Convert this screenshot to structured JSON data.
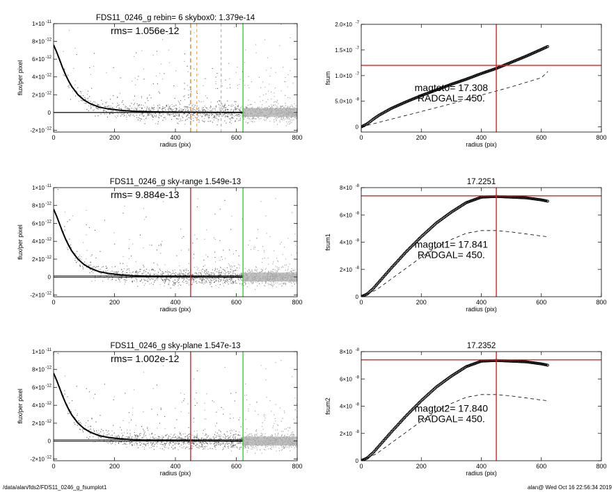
{
  "footer": {
    "path": "/data/alan/fds2/FDS11_0246_g_fsumplot1",
    "stamp": "alan@  Wed Oct 16 22:56:34 2019"
  },
  "chart_data": [
    {
      "id": "profile-1",
      "type": "scatter",
      "title": "FDS11_0246_g rebin= 6    skybox0:  1.379e-14",
      "annotations": [
        "rms= 1.056e-12"
      ],
      "xlabel": "radius (pix)",
      "ylabel": "flux/per pixel",
      "xlim": [
        0,
        800
      ],
      "ylim": [
        -2.2e-12,
        1e-11
      ],
      "xticks": [
        {
          "v": 0,
          "label": "0"
        },
        {
          "v": 200,
          "label": "200"
        },
        {
          "v": 400,
          "label": "400"
        },
        {
          "v": 600,
          "label": "600"
        },
        {
          "v": 800,
          "label": "800"
        }
      ],
      "yticks": [
        {
          "v": 1e-11,
          "label": "1×10",
          "exp": "-11"
        },
        {
          "v": 8e-12,
          "label": "8×10",
          "exp": "-12"
        },
        {
          "v": 6e-12,
          "label": "6×10",
          "exp": "-12"
        },
        {
          "v": 4e-12,
          "label": "4×10",
          "exp": "-12"
        },
        {
          "v": 2e-12,
          "label": "2×10",
          "exp": "-12"
        },
        {
          "v": 0,
          "label": "0",
          "exp": ""
        },
        {
          "v": -2e-12,
          "label": "-2×10",
          "exp": "-12"
        }
      ],
      "profile": {
        "x": [
          0,
          10,
          20,
          30,
          40,
          50,
          60,
          80,
          100,
          120,
          150,
          180,
          220,
          260,
          300,
          350,
          400,
          450,
          500,
          550,
          620
        ],
        "y": [
          7.6e-12,
          6.8e-12,
          5.9e-12,
          5e-12,
          4.2e-12,
          3.5e-12,
          2.9e-12,
          2e-12,
          1.4e-12,
          1e-12,
          6e-13,
          4e-13,
          2.5e-13,
          1.5e-13,
          1e-13,
          6e-14,
          4e-14,
          3e-14,
          2e-14,
          1.5e-14,
          1e-14
        ]
      },
      "zero_line": true,
      "vlines": [
        {
          "x": 450,
          "color": "#e8862a",
          "dash": "6,4"
        },
        {
          "x": 470,
          "color": "#f0b070",
          "dash": "4,4"
        },
        {
          "x": 550,
          "color": "#bbbbbb",
          "dash": "4,4"
        },
        {
          "x": 622,
          "color": "#22dd22",
          "dash": ""
        }
      ],
      "hlines": [],
      "noise_amp": 1.1e-12
    },
    {
      "id": "fsum-0",
      "type": "line",
      "title": "",
      "annotations": [
        "magtot0=  17.308",
        "RADGAL=    450."
      ],
      "xlabel": "radius (pix)",
      "ylabel": "fsum",
      "xlim": [
        0,
        800
      ],
      "ylim": [
        -1e-08,
        2e-07
      ],
      "xticks": [
        {
          "v": 0,
          "label": "0"
        },
        {
          "v": 200,
          "label": "200"
        },
        {
          "v": 400,
          "label": "400"
        },
        {
          "v": 600,
          "label": "600"
        },
        {
          "v": 800,
          "label": "800"
        }
      ],
      "yticks": [
        {
          "v": 2e-07,
          "label": "2.0×10",
          "exp": "-7"
        },
        {
          "v": 1.5e-07,
          "label": "1.5×10",
          "exp": "-7"
        },
        {
          "v": 1e-07,
          "label": "1.0×10",
          "exp": "-7"
        },
        {
          "v": 5e-08,
          "label": "5.0×10",
          "exp": "-8"
        },
        {
          "v": 0,
          "label": "0",
          "exp": ""
        }
      ],
      "curve": {
        "x": [
          0,
          20,
          40,
          60,
          100,
          150,
          200,
          250,
          300,
          350,
          400,
          450,
          500,
          550,
          600,
          622
        ],
        "y": [
          0,
          6e-09,
          1.5e-08,
          2.3e-08,
          3.6e-08,
          4.9e-08,
          6.1e-08,
          7.2e-08,
          8.3e-08,
          9.3e-08,
          1.04e-07,
          1.14e-07,
          1.26e-07,
          1.38e-07,
          1.51e-07,
          1.57e-07
        ]
      },
      "dashed": {
        "x": [
          0,
          100,
          200,
          300,
          400,
          500,
          600,
          622
        ],
        "y": [
          0,
          1.5e-08,
          3e-08,
          4.5e-08,
          6.2e-08,
          7.8e-08,
          9.6e-08,
          1.08e-07
        ]
      },
      "vlines": [
        {
          "x": 450,
          "color": "#e02020",
          "dash": ""
        }
      ],
      "hlines": [
        {
          "y": 1.2e-07,
          "color": "#e02020"
        }
      ]
    },
    {
      "id": "profile-2",
      "type": "scatter",
      "title": "FDS11_0246_g sky-range  1.549e-13",
      "annotations": [
        "rms= 9.884e-13"
      ],
      "xlabel": "radius (pix)",
      "ylabel": "flux/per pixel",
      "xlim": [
        0,
        800
      ],
      "ylim": [
        -2.2e-12,
        1e-11
      ],
      "xticks": [
        {
          "v": 0,
          "label": "0"
        },
        {
          "v": 200,
          "label": "200"
        },
        {
          "v": 400,
          "label": "400"
        },
        {
          "v": 600,
          "label": "600"
        },
        {
          "v": 800,
          "label": "800"
        }
      ],
      "yticks": [
        {
          "v": 1e-11,
          "label": "1×10",
          "exp": "-11"
        },
        {
          "v": 8e-12,
          "label": "8×10",
          "exp": "-12"
        },
        {
          "v": 6e-12,
          "label": "6×10",
          "exp": "-12"
        },
        {
          "v": 4e-12,
          "label": "4×10",
          "exp": "-12"
        },
        {
          "v": 2e-12,
          "label": "2×10",
          "exp": "-12"
        },
        {
          "v": 0,
          "label": "0",
          "exp": ""
        },
        {
          "v": -2e-12,
          "label": "-2×10",
          "exp": "-12"
        }
      ],
      "profile": {
        "x": [
          0,
          10,
          20,
          30,
          40,
          50,
          60,
          80,
          100,
          120,
          150,
          180,
          220,
          260,
          300,
          350,
          400,
          450,
          500,
          550,
          620
        ],
        "y": [
          7.6e-12,
          6.8e-12,
          5.9e-12,
          5e-12,
          4.2e-12,
          3.5e-12,
          2.9e-12,
          2e-12,
          1.4e-12,
          1e-12,
          6e-13,
          4e-13,
          2.5e-13,
          1.5e-13,
          1e-13,
          6e-14,
          4e-14,
          3e-14,
          2e-14,
          1.5e-14,
          1e-14
        ]
      },
      "zero_line": true,
      "vlines": [
        {
          "x": 450,
          "color": "#e02020",
          "dash": ""
        },
        {
          "x": 622,
          "color": "#22dd22",
          "dash": ""
        }
      ],
      "hlines": [],
      "noise_amp": 1e-12
    },
    {
      "id": "fsum-1",
      "type": "line",
      "title": "17.2251",
      "annotations": [
        "magtot1=  17.841",
        "RADGAL=    450."
      ],
      "xlabel": "radius (pix)",
      "ylabel": "fsum1",
      "xlim": [
        0,
        800
      ],
      "ylim": [
        0,
        8e-08
      ],
      "xticks": [
        {
          "v": 0,
          "label": "0"
        },
        {
          "v": 200,
          "label": "200"
        },
        {
          "v": 400,
          "label": "400"
        },
        {
          "v": 600,
          "label": "600"
        },
        {
          "v": 800,
          "label": "800"
        }
      ],
      "yticks": [
        {
          "v": 8e-08,
          "label": "8×10",
          "exp": "-8"
        },
        {
          "v": 6e-08,
          "label": "6×10",
          "exp": "-8"
        },
        {
          "v": 4e-08,
          "label": "4×10",
          "exp": "-8"
        },
        {
          "v": 2e-08,
          "label": "2×10",
          "exp": "-8"
        },
        {
          "v": 0,
          "label": "0",
          "exp": ""
        }
      ],
      "curve": {
        "x": [
          0,
          20,
          40,
          60,
          80,
          100,
          150,
          200,
          250,
          300,
          350,
          400,
          450,
          500,
          550,
          600,
          622
        ],
        "y": [
          0,
          2e-09,
          6e-09,
          1.1e-08,
          1.6e-08,
          2.1e-08,
          3.3e-08,
          4.4e-08,
          5.4e-08,
          6.2e-08,
          6.9e-08,
          7.3e-08,
          7.35e-08,
          7.3e-08,
          7.25e-08,
          7.1e-08,
          7e-08
        ]
      },
      "dashed": {
        "x": [
          0,
          50,
          100,
          150,
          200,
          250,
          300,
          350,
          400,
          450,
          500,
          550,
          600,
          622
        ],
        "y": [
          0,
          5e-09,
          1.3e-08,
          2.1e-08,
          2.9e-08,
          3.6e-08,
          4.2e-08,
          4.65e-08,
          4.85e-08,
          4.85e-08,
          4.75e-08,
          4.6e-08,
          4.45e-08,
          4.4e-08
        ]
      },
      "vlines": [
        {
          "x": 450,
          "color": "#e02020",
          "dash": ""
        }
      ],
      "hlines": [
        {
          "y": 7.4e-08,
          "color": "#e02020"
        }
      ]
    },
    {
      "id": "profile-3",
      "type": "scatter",
      "title": "FDS11_0246_g sky-plane  1.547e-13",
      "annotations": [
        "rms= 1.002e-12"
      ],
      "xlabel": "radius (pix)",
      "ylabel": "flux/per pixel",
      "xlim": [
        0,
        800
      ],
      "ylim": [
        -2.2e-12,
        1e-11
      ],
      "xticks": [
        {
          "v": 0,
          "label": "0"
        },
        {
          "v": 200,
          "label": "200"
        },
        {
          "v": 400,
          "label": "400"
        },
        {
          "v": 600,
          "label": "600"
        },
        {
          "v": 800,
          "label": "800"
        }
      ],
      "yticks": [
        {
          "v": 1e-11,
          "label": "1×10",
          "exp": "-11"
        },
        {
          "v": 8e-12,
          "label": "8×10",
          "exp": "-12"
        },
        {
          "v": 6e-12,
          "label": "6×10",
          "exp": "-12"
        },
        {
          "v": 4e-12,
          "label": "4×10",
          "exp": "-12"
        },
        {
          "v": 2e-12,
          "label": "2×10",
          "exp": "-12"
        },
        {
          "v": 0,
          "label": "0",
          "exp": ""
        },
        {
          "v": -2e-12,
          "label": "-2×10",
          "exp": "-12"
        }
      ],
      "profile": {
        "x": [
          0,
          10,
          20,
          30,
          40,
          50,
          60,
          80,
          100,
          120,
          150,
          180,
          220,
          260,
          300,
          350,
          400,
          450,
          500,
          550,
          620
        ],
        "y": [
          7.6e-12,
          6.8e-12,
          5.9e-12,
          5e-12,
          4.2e-12,
          3.5e-12,
          2.9e-12,
          2e-12,
          1.4e-12,
          1e-12,
          6e-13,
          4e-13,
          2.5e-13,
          1.5e-13,
          1e-13,
          6e-14,
          4e-14,
          3e-14,
          2e-14,
          1.5e-14,
          1e-14
        ]
      },
      "zero_line": true,
      "vlines": [
        {
          "x": 450,
          "color": "#e02020",
          "dash": ""
        },
        {
          "x": 622,
          "color": "#22dd22",
          "dash": ""
        }
      ],
      "hlines": [],
      "noise_amp": 1e-12
    },
    {
      "id": "fsum-2",
      "type": "line",
      "title": "17.2352",
      "annotations": [
        "magtot2=  17.840",
        "RADGAL=    450."
      ],
      "xlabel": "radius (pix)",
      "ylabel": "fsum2",
      "xlim": [
        0,
        800
      ],
      "ylim": [
        0,
        8e-08
      ],
      "xticks": [
        {
          "v": 0,
          "label": "0"
        },
        {
          "v": 200,
          "label": "200"
        },
        {
          "v": 400,
          "label": "400"
        },
        {
          "v": 600,
          "label": "600"
        },
        {
          "v": 800,
          "label": "800"
        }
      ],
      "yticks": [
        {
          "v": 8e-08,
          "label": "8×10",
          "exp": "-8"
        },
        {
          "v": 6e-08,
          "label": "6×10",
          "exp": "-8"
        },
        {
          "v": 4e-08,
          "label": "4×10",
          "exp": "-8"
        },
        {
          "v": 2e-08,
          "label": "2×10",
          "exp": "-8"
        },
        {
          "v": 0,
          "label": "0",
          "exp": ""
        }
      ],
      "curve": {
        "x": [
          0,
          20,
          40,
          60,
          80,
          100,
          150,
          200,
          250,
          300,
          350,
          400,
          450,
          500,
          550,
          600,
          622
        ],
        "y": [
          0,
          2e-09,
          6e-09,
          1.1e-08,
          1.6e-08,
          2.1e-08,
          3.3e-08,
          4.4e-08,
          5.4e-08,
          6.2e-08,
          6.9e-08,
          7.3e-08,
          7.35e-08,
          7.3e-08,
          7.25e-08,
          7.1e-08,
          7e-08
        ]
      },
      "dashed": {
        "x": [
          0,
          50,
          100,
          150,
          200,
          250,
          300,
          350,
          400,
          450,
          500,
          550,
          600,
          622
        ],
        "y": [
          0,
          5e-09,
          1.3e-08,
          2.1e-08,
          2.9e-08,
          3.6e-08,
          4.2e-08,
          4.65e-08,
          4.85e-08,
          4.85e-08,
          4.75e-08,
          4.6e-08,
          4.45e-08,
          4.4e-08
        ]
      },
      "vlines": [
        {
          "x": 450,
          "color": "#e02020",
          "dash": ""
        }
      ],
      "hlines": [
        {
          "y": 7.4e-08,
          "color": "#e02020"
        }
      ]
    }
  ]
}
